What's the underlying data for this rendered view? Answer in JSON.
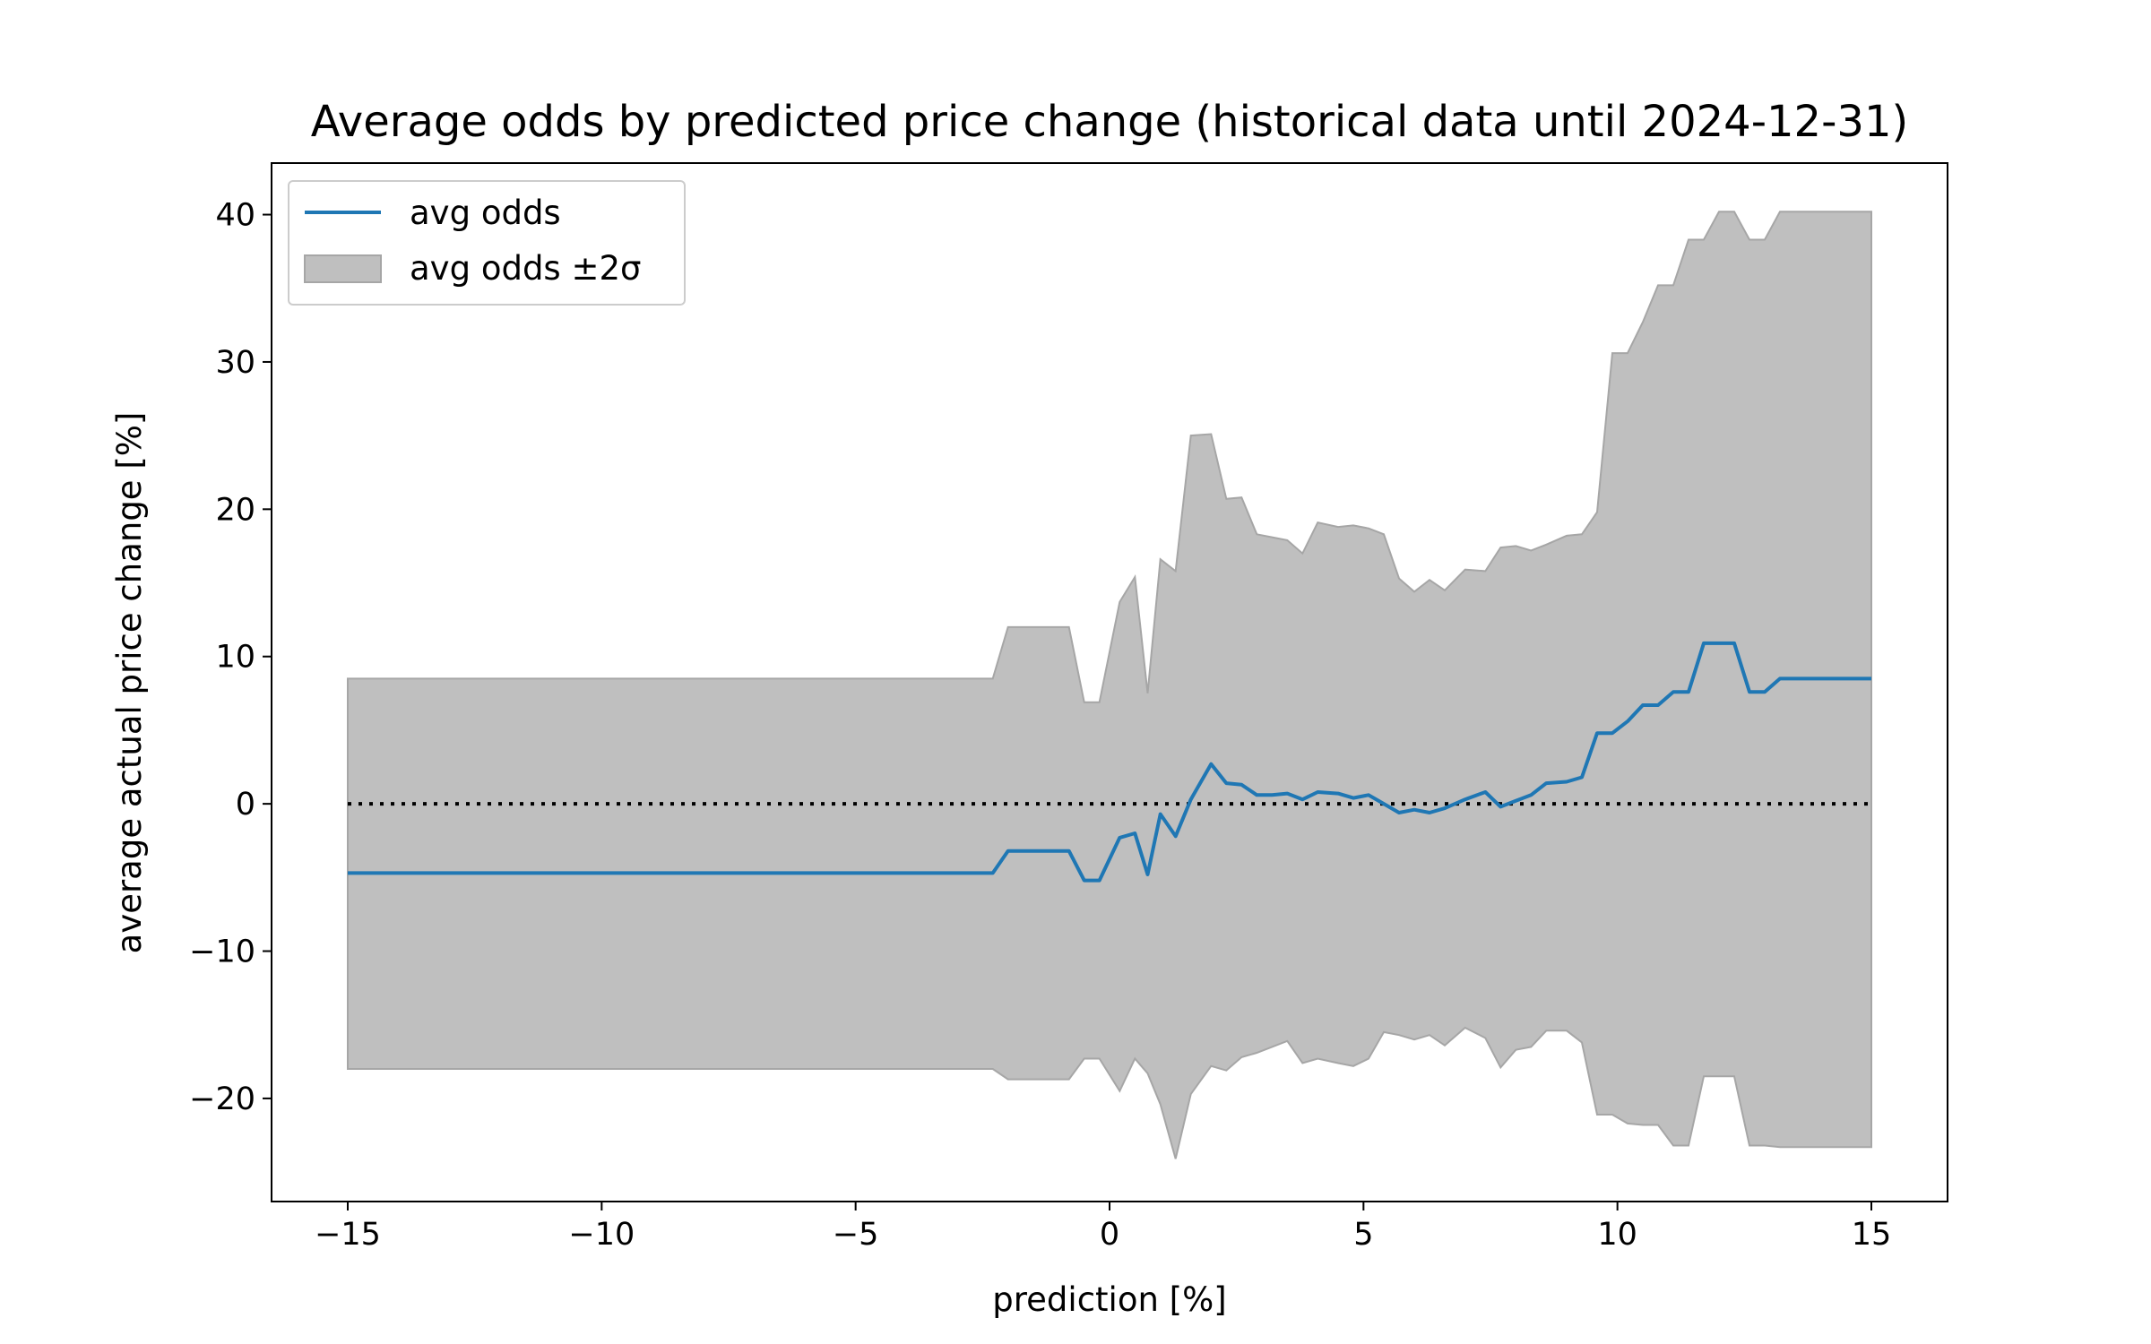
{
  "chart_data": {
    "type": "line",
    "title": "Average odds by predicted price change (historical data until 2024-12-31)",
    "xlabel": "prediction [%]",
    "ylabel": "average actual price change [%]",
    "xlim": [
      -16.5,
      16.5
    ],
    "ylim": [
      -27,
      43.5
    ],
    "x_ticks": [
      -15,
      -10,
      -5,
      0,
      5,
      10,
      15
    ],
    "x_tick_labels": [
      "−15",
      "−10",
      "−5",
      "0",
      "5",
      "10",
      "15"
    ],
    "y_ticks": [
      -20,
      -10,
      0,
      10,
      20,
      30,
      40
    ],
    "y_tick_labels": [
      "−20",
      "−10",
      "0",
      "10",
      "20",
      "30",
      "40"
    ],
    "grid": false,
    "legend_position": "top-left",
    "reference_line": {
      "y": 0,
      "style": "dotted",
      "color": "#000000"
    },
    "series": [
      {
        "name": "avg odds",
        "color": "#1f77b4",
        "x": [
          -15,
          -2.3,
          -2,
          -0.8,
          -0.5,
          -0.2,
          0.2,
          0.5,
          0.75,
          1.0,
          1.3,
          1.6,
          2.0,
          2.3,
          2.6,
          2.9,
          3.2,
          3.5,
          3.8,
          4.1,
          4.5,
          4.8,
          5.1,
          5.4,
          5.7,
          6.0,
          6.3,
          6.6,
          7.0,
          7.4,
          7.7,
          8.0,
          8.3,
          8.6,
          9.0,
          9.3,
          9.6,
          9.9,
          10.2,
          10.5,
          10.8,
          11.1,
          11.4,
          11.7,
          12.0,
          12.3,
          12.6,
          12.9,
          13.2,
          15
        ],
        "values": [
          -4.7,
          -4.7,
          -3.2,
          -3.2,
          -5.2,
          -5.2,
          -2.3,
          -2.0,
          -4.8,
          -0.7,
          -2.2,
          0.3,
          2.7,
          1.4,
          1.3,
          0.6,
          0.6,
          0.7,
          0.3,
          0.8,
          0.7,
          0.4,
          0.6,
          0.0,
          -0.6,
          -0.4,
          -0.6,
          -0.3,
          0.3,
          0.8,
          -0.2,
          0.2,
          0.6,
          1.4,
          1.5,
          1.8,
          4.8,
          4.8,
          5.6,
          6.7,
          6.7,
          7.6,
          7.6,
          10.9,
          10.9,
          10.9,
          7.6,
          7.6,
          8.5,
          8.5
        ]
      },
      {
        "name": "avg odds ±2σ",
        "color": "#bfbfbf",
        "edge_color": "#a6a6a6",
        "x": [
          -15,
          -2.3,
          -2,
          -0.8,
          -0.5,
          -0.2,
          0.2,
          0.5,
          0.75,
          1.0,
          1.3,
          1.6,
          2.0,
          2.3,
          2.6,
          2.9,
          3.2,
          3.5,
          3.8,
          4.1,
          4.5,
          4.8,
          5.1,
          5.4,
          5.7,
          6.0,
          6.3,
          6.6,
          7.0,
          7.4,
          7.7,
          8.0,
          8.3,
          8.6,
          9.0,
          9.3,
          9.6,
          9.9,
          10.2,
          10.5,
          10.8,
          11.1,
          11.4,
          11.7,
          12.0,
          12.3,
          12.6,
          12.9,
          13.2,
          15
        ],
        "upper": [
          8.5,
          8.5,
          12.0,
          12.0,
          6.9,
          6.9,
          13.7,
          15.4,
          7.5,
          16.6,
          15.8,
          25.0,
          25.1,
          20.7,
          20.8,
          18.3,
          18.1,
          17.9,
          17.0,
          19.1,
          18.8,
          18.9,
          18.7,
          18.3,
          15.3,
          14.4,
          15.2,
          14.5,
          15.9,
          15.8,
          17.4,
          17.5,
          17.2,
          17.6,
          18.2,
          18.3,
          19.8,
          30.6,
          30.6,
          32.7,
          35.2,
          35.2,
          38.3,
          38.3,
          40.2,
          40.2,
          38.3,
          38.3,
          40.2,
          40.2
        ],
        "lower": [
          -18.0,
          -18.0,
          -18.7,
          -18.7,
          -17.3,
          -17.3,
          -19.5,
          -17.3,
          -18.3,
          -20.4,
          -24.1,
          -19.7,
          -17.8,
          -18.1,
          -17.2,
          -16.9,
          -16.5,
          -16.1,
          -17.6,
          -17.3,
          -17.6,
          -17.8,
          -17.3,
          -15.5,
          -15.7,
          -16.0,
          -15.7,
          -16.4,
          -15.2,
          -15.9,
          -17.9,
          -16.7,
          -16.5,
          -15.4,
          -15.4,
          -16.2,
          -21.1,
          -21.1,
          -21.7,
          -21.8,
          -21.8,
          -23.2,
          -23.2,
          -18.5,
          -18.5,
          -18.5,
          -23.2,
          -23.2,
          -23.3,
          -23.3
        ]
      }
    ]
  }
}
